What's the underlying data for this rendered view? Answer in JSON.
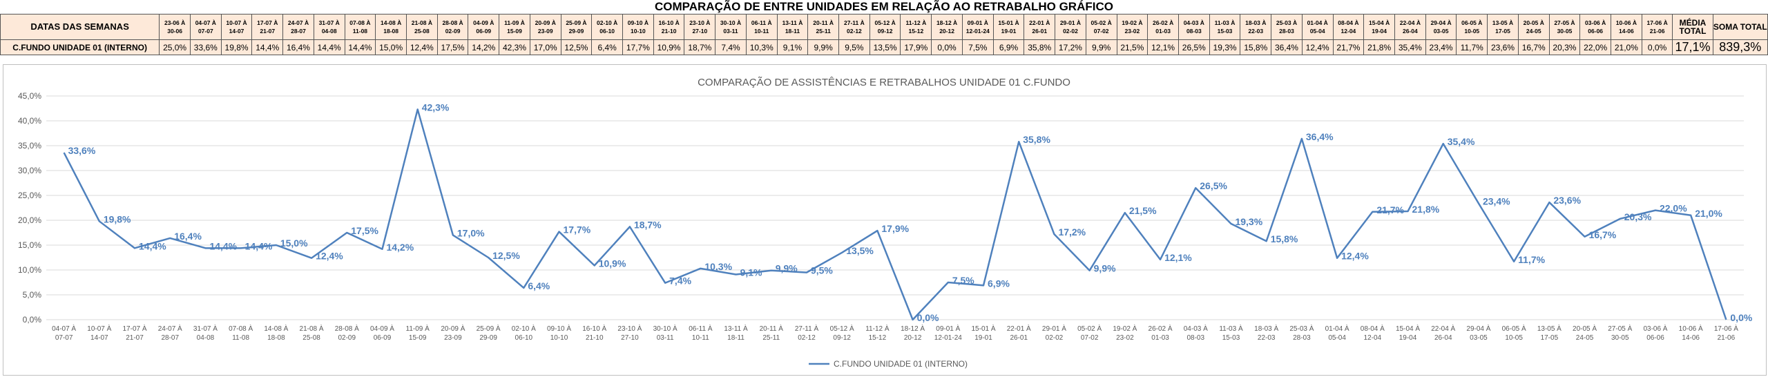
{
  "page": {
    "title": "COMPARAÇÃO DE ENTRE UNIDADES EM RELAÇÃO AO RETRABALHO GRÁFICO"
  },
  "table": {
    "header_label": "DATAS DAS SEMANAS",
    "row_label": "C.FUNDO UNIDADE 01 (INTERNO)",
    "weeks": [
      "23-06 À 30-06",
      "04-07 À 07-07",
      "10-07 À 14-07",
      "17-07 À 21-07",
      "24-07 À 28-07",
      "31-07 À 04-08",
      "07-08 À 11-08",
      "14-08 À 18-08",
      "21-08 À 25-08",
      "28-08 À 02-09",
      "04-09 À 06-09",
      "11-09 À 15-09",
      "20-09 À 23-09",
      "25-09 À 29-09",
      "02-10 À 06-10",
      "09-10 À 10-10",
      "16-10 À 21-10",
      "23-10 À 27-10",
      "30-10 À 03-11",
      "06-11 À 10-11",
      "13-11 À 18-11",
      "20-11 À 25-11",
      "27-11 À 02-12",
      "05-12 À 09-12",
      "11-12 À 15-12",
      "18-12 À 20-12",
      "09-01 À 12-01-24",
      "15-01 À 19-01",
      "22-01 À 26-01",
      "29-01 À 02-02",
      "05-02 À 07-02",
      "19-02 À 23-02",
      "26-02 À 01-03",
      "04-03 À 08-03",
      "11-03 À 15-03",
      "18-03 À 22-03",
      "25-03 À 28-03",
      "01-04 À 05-04",
      "08-04 À 12-04",
      "15-04 À 19-04",
      "22-04 À 26-04",
      "29-04 À 03-05",
      "06-05 À 10-05",
      "13-05 À 17-05",
      "20-05 À 24-05",
      "27-05 À 30-05",
      "03-06 À 06-06",
      "10-06 À 14-06",
      "17-06 À 21-06"
    ],
    "values": [
      "25,0%",
      "33,6%",
      "19,8%",
      "14,4%",
      "16,4%",
      "14,4%",
      "14,4%",
      "15,0%",
      "12,4%",
      "17,5%",
      "14,2%",
      "42,3%",
      "17,0%",
      "12,5%",
      "6,4%",
      "17,7%",
      "10,9%",
      "18,7%",
      "7,4%",
      "10,3%",
      "9,1%",
      "9,9%",
      "9,5%",
      "13,5%",
      "17,9%",
      "0,0%",
      "7,5%",
      "6,9%",
      "35,8%",
      "17,2%",
      "9,9%",
      "21,5%",
      "12,1%",
      "26,5%",
      "19,3%",
      "15,8%",
      "36,4%",
      "12,4%",
      "21,7%",
      "21,8%",
      "35,4%",
      "23,4%",
      "11,7%",
      "23,6%",
      "16,7%",
      "20,3%",
      "22,0%",
      "21,0%",
      "0,0%"
    ],
    "media_header": "MÉDIA TOTAL",
    "media_value": "17,1%",
    "soma_header": "SOMA TOTAL",
    "soma_value": "839,3%",
    "colors": {
      "cell_bg": "#fde9d9",
      "soma_bg": "#ffff00"
    }
  },
  "chart_data": {
    "type": "line",
    "title": "COMPARAÇÃO DE ASSISTÊNCIAS E RETRABALHOS UNIDADE 01 C.FUNDO",
    "categories": [
      "04-07 À 07-07",
      "10-07 À 14-07",
      "17-07 À 21-07",
      "24-07 À 28-07",
      "31-07 À 04-08",
      "07-08 À 11-08",
      "14-08 À 18-08",
      "21-08 À 25-08",
      "28-08 À 02-09",
      "04-09 À 06-09",
      "11-09 À 15-09",
      "20-09 À 23-09",
      "25-09 À 29-09",
      "02-10 À 06-10",
      "09-10 À 10-10",
      "16-10 À 21-10",
      "23-10 À 27-10",
      "30-10 À 03-11",
      "06-11 À 10-11",
      "13-11 À 18-11",
      "20-11 À 25-11",
      "27-11 À 02-12",
      "05-12 À 09-12",
      "11-12 À 15-12",
      "18-12 À 20-12",
      "09-01 À 12-01-24",
      "15-01 À 19-01",
      "22-01 À 26-01",
      "29-01 À 02-02",
      "05-02 À 07-02",
      "19-02 À 23-02",
      "26-02 À 01-03",
      "04-03 À 08-03",
      "11-03 À 15-03",
      "18-03 À 22-03",
      "25-03 À 28-03",
      "01-04 À 05-04",
      "08-04 À 12-04",
      "15-04 À 19-04",
      "22-04 À 26-04",
      "29-04 À 03-05",
      "06-05 À 10-05",
      "13-05 À 17-05",
      "20-05 À 24-05",
      "27-05 À 30-05",
      "03-06 À 06-06",
      "10-06 À 14-06",
      "17-06 À 21-06"
    ],
    "series": [
      {
        "name": "C.FUNDO UNIDADE 01 (INTERNO)",
        "color": "#4f81bd",
        "values": [
          33.6,
          19.8,
          14.4,
          16.4,
          14.4,
          14.4,
          15.0,
          12.4,
          17.5,
          14.2,
          42.3,
          17.0,
          12.5,
          6.4,
          17.7,
          10.9,
          18.7,
          7.4,
          10.3,
          9.1,
          9.9,
          9.5,
          13.5,
          17.9,
          0.0,
          7.5,
          6.9,
          35.8,
          17.2,
          9.9,
          21.5,
          12.1,
          26.5,
          19.3,
          15.8,
          36.4,
          12.4,
          21.7,
          21.8,
          35.4,
          23.4,
          11.7,
          23.6,
          16.7,
          20.3,
          22.0,
          21.0,
          0.0
        ],
        "labels": [
          "33,6%",
          "19,8%",
          "14,4%",
          "16,4%",
          "14,4%",
          "14,4%",
          "15,0%",
          "12,4%",
          "17,5%",
          "14,2%",
          "42,3%",
          "17,0%",
          "12,5%",
          "6,4%",
          "17,7%",
          "10,9%",
          "18,7%",
          "7,4%",
          "10,3%",
          "9,1%",
          "9,9%",
          "9,5%",
          "13,5%",
          "17,9%",
          "0,0%",
          "7,5%",
          "6,9%",
          "35,8%",
          "17,2%",
          "9,9%",
          "21,5%",
          "12,1%",
          "26,5%",
          "19,3%",
          "15,8%",
          "36,4%",
          "12,4%",
          "21,7%",
          "21,8%",
          "35,4%",
          "23,4%",
          "11,7%",
          "23,6%",
          "16,7%",
          "20,3%",
          "22,0%",
          "21,0%",
          "0,0%"
        ]
      }
    ],
    "ylim": [
      0,
      45
    ],
    "yticks": [
      0,
      5,
      10,
      15,
      20,
      25,
      30,
      35,
      40,
      45
    ],
    "ytick_labels": [
      "0,0%",
      "5,0%",
      "10,0%",
      "15,0%",
      "20,0%",
      "25,0%",
      "30,0%",
      "35,0%",
      "40,0%",
      "45,0%"
    ],
    "grid": true,
    "legend": "bottom-center",
    "colors": {
      "gridline": "#d9d9d9",
      "axis_text": "#595959"
    }
  }
}
